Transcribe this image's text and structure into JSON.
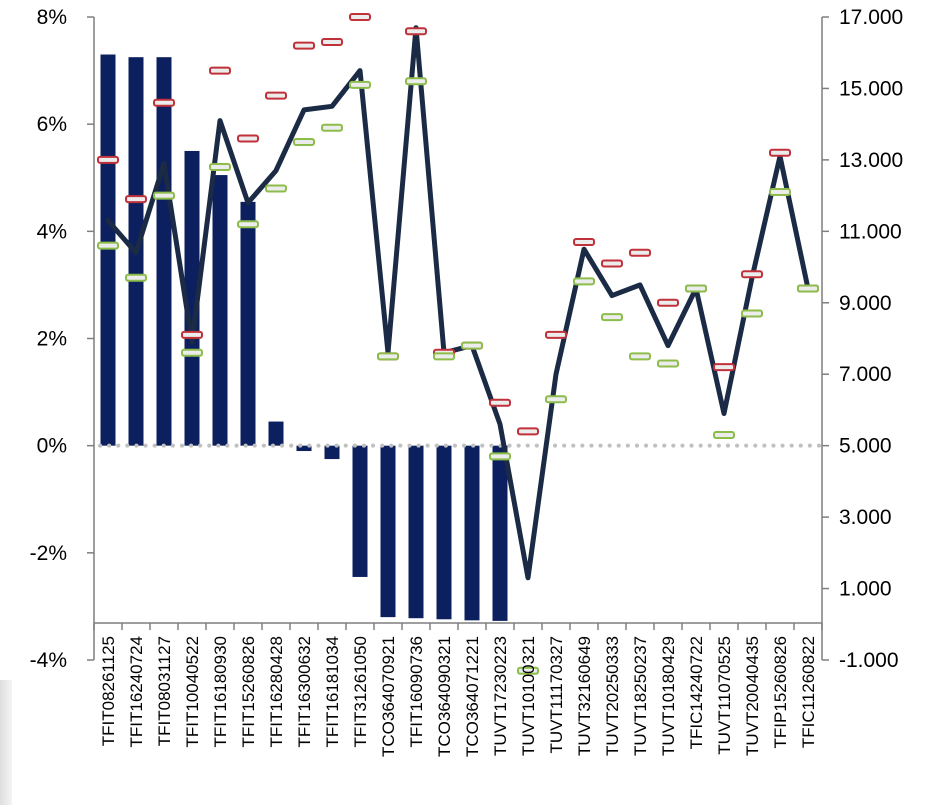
{
  "chart_data": {
    "type": "bar+line",
    "title": "",
    "xlabel": "",
    "ylabel": "",
    "categories": [
      "TFIT08261125",
      "TFIT16240724",
      "TFIT08031127",
      "TFIT10040522",
      "TFIT16180930",
      "TFIT15260826",
      "TFIT16280428",
      "TFIT16300632",
      "TFIT16181034",
      "TFIT31261050",
      "TCO364070921",
      "TFIT16090736",
      "TCO364090321",
      "TCO364071221",
      "TUVT17230223",
      "TUVT10100321",
      "TUVT11170327",
      "TUVT32160649",
      "TUVT20250333",
      "TUVT18250237",
      "TUVT10180429",
      "TFIC14240722",
      "TUVT11070525",
      "TUVT20040435",
      "TFIP15260826",
      "TFIC11260822"
    ],
    "left_axis": {
      "range": [
        -4,
        8
      ],
      "ticks": [
        "-4%",
        "-2%",
        "0%",
        "2%",
        "4%",
        "6%",
        "8%"
      ]
    },
    "right_axis": {
      "range": [
        -1,
        17
      ],
      "ticks": [
        "-1.000",
        "1.000",
        "3.000",
        "5.000",
        "7.000",
        "9.000",
        "11.000",
        "13.000",
        "15.000",
        "17.000"
      ]
    },
    "reference_line": {
      "axis": "left",
      "value": 0,
      "style": "dotted",
      "color": "#c0c0c0"
    },
    "grid": false,
    "legend": "none",
    "series": [
      {
        "kind": "bar",
        "axis": "left",
        "color": "#0c1f5e",
        "values": [
          7.3,
          7.25,
          7.25,
          5.5,
          5.05,
          4.55,
          0.45,
          -0.1,
          -0.25,
          -2.45,
          -3.2,
          -3.22,
          -3.24,
          -3.26,
          -3.27,
          null,
          null,
          null,
          null,
          null,
          null,
          null,
          null,
          null,
          null,
          null
        ]
      },
      {
        "kind": "line",
        "axis": "right",
        "color": "#1c2b45",
        "values": [
          11.3,
          10.4,
          12.9,
          7.9,
          14.1,
          11.8,
          12.7,
          14.4,
          14.5,
          15.5,
          7.6,
          16.7,
          7.6,
          7.8,
          5.6,
          1.3,
          7.0,
          10.5,
          9.2,
          9.5,
          7.8,
          9.4,
          5.9,
          9.7,
          13.1,
          9.4
        ]
      },
      {
        "kind": "marker",
        "axis": "right",
        "color": "#c0313a",
        "values": [
          13.0,
          11.9,
          14.6,
          8.1,
          15.5,
          13.6,
          14.8,
          16.2,
          16.3,
          17.0,
          7.5,
          16.6,
          7.6,
          7.8,
          6.2,
          5.4,
          8.1,
          10.7,
          10.1,
          10.4,
          9.0,
          9.4,
          7.2,
          9.8,
          13.2,
          9.4
        ]
      },
      {
        "kind": "marker",
        "axis": "right",
        "color": "#8cbd4a",
        "values": [
          10.6,
          9.7,
          12.0,
          7.6,
          12.8,
          11.2,
          12.2,
          13.5,
          13.9,
          15.1,
          7.5,
          15.2,
          7.5,
          7.8,
          4.7,
          -1.3,
          6.3,
          9.6,
          8.6,
          7.5,
          7.3,
          9.4,
          5.3,
          8.7,
          12.1,
          9.4
        ]
      }
    ]
  }
}
